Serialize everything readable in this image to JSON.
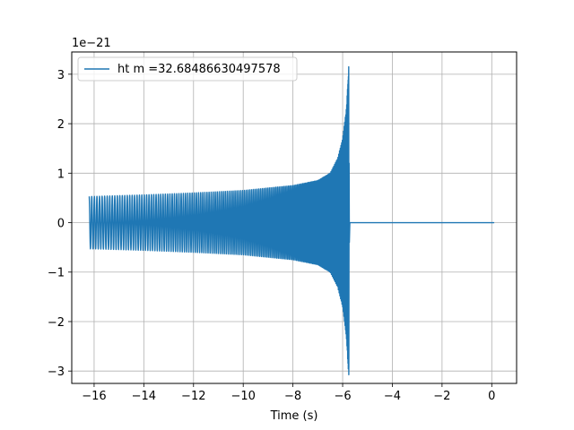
{
  "chart_data": {
    "type": "line",
    "title": "",
    "xlabel": "Time (s)",
    "ylabel": "",
    "offset_text": "1e−21",
    "y_scale_exponent": -21,
    "xlim": [
      -16.9,
      1.0
    ],
    "ylim": [
      -3.25,
      3.45
    ],
    "x_ticks": [
      -16,
      -14,
      -12,
      -10,
      -8,
      -6,
      -4,
      -2,
      0
    ],
    "y_ticks": [
      -3,
      -2,
      -1,
      0,
      1,
      2,
      3
    ],
    "x_tick_labels": [
      "−16",
      "−14",
      "−12",
      "−10",
      "−8",
      "−6",
      "−4",
      "−2",
      "0"
    ],
    "y_tick_labels": [
      "−3",
      "−2",
      "−1",
      "0",
      "1",
      "2",
      "3"
    ],
    "grid": true,
    "legend_position": "top-left",
    "series": [
      {
        "name": "ht m =32.68486630497578",
        "color": "#1f77b4",
        "waveform": "chirp",
        "t_start": -16.2,
        "t_merger": -5.75,
        "t_end": 0.1,
        "initial_amplitude": 0.53,
        "peak_max": 3.15,
        "peak_min": -2.93,
        "envelope_samples": [
          {
            "t": -16.0,
            "amp": 0.53
          },
          {
            "t": -14.0,
            "amp": 0.56
          },
          {
            "t": -12.0,
            "amp": 0.6
          },
          {
            "t": -10.0,
            "amp": 0.65
          },
          {
            "t": -8.0,
            "amp": 0.75
          },
          {
            "t": -7.0,
            "amp": 0.85
          },
          {
            "t": -6.5,
            "amp": 1.0
          },
          {
            "t": -6.2,
            "amp": 1.3
          },
          {
            "t": -6.0,
            "amp": 1.7
          },
          {
            "t": -5.85,
            "amp": 2.3
          },
          {
            "t": -5.75,
            "amp": 3.15
          }
        ]
      }
    ]
  }
}
